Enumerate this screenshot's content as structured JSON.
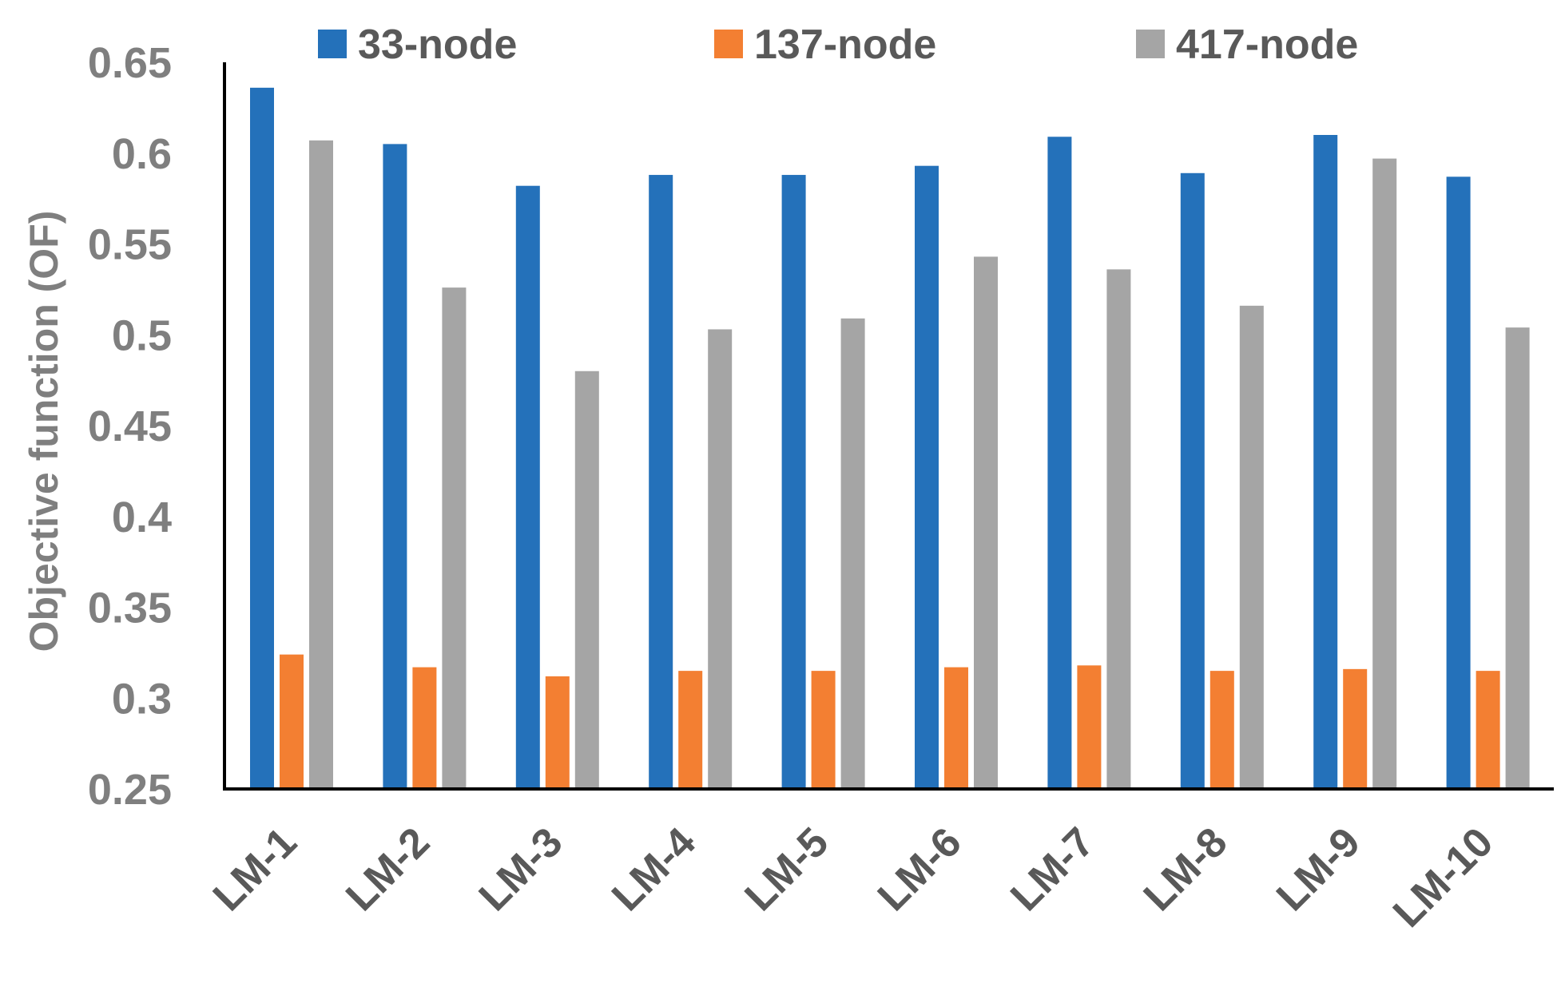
{
  "chart_data": {
    "type": "bar",
    "title": "",
    "xlabel": "",
    "ylabel": "Objective function (OF)",
    "ylim": [
      0.25,
      0.65
    ],
    "yticks": [
      0.25,
      0.3,
      0.35,
      0.4,
      0.45,
      0.5,
      0.55,
      0.6,
      0.65
    ],
    "ytick_labels": [
      "0.25",
      "0.3",
      "0.35",
      "0.4",
      "0.45",
      "0.5",
      "0.55",
      "0.6",
      "0.65"
    ],
    "grid": false,
    "legend_position": "top",
    "categories": [
      "LM-1",
      "LM-2",
      "LM-3",
      "LM-4",
      "LM-5",
      "LM-6",
      "LM-7",
      "LM-8",
      "LM-9",
      "LM-10"
    ],
    "series": [
      {
        "name": "33-node",
        "color": "#2471BA",
        "values": [
          0.636,
          0.605,
          0.582,
          0.588,
          0.588,
          0.593,
          0.609,
          0.589,
          0.61,
          0.587
        ]
      },
      {
        "name": "137-node",
        "color": "#F37F32",
        "values": [
          0.324,
          0.317,
          0.312,
          0.315,
          0.315,
          0.317,
          0.318,
          0.315,
          0.316,
          0.315
        ]
      },
      {
        "name": "417-node",
        "color": "#A5A5A5",
        "values": [
          0.607,
          0.526,
          0.48,
          0.503,
          0.509,
          0.543,
          0.536,
          0.516,
          0.597,
          0.504
        ]
      }
    ]
  }
}
